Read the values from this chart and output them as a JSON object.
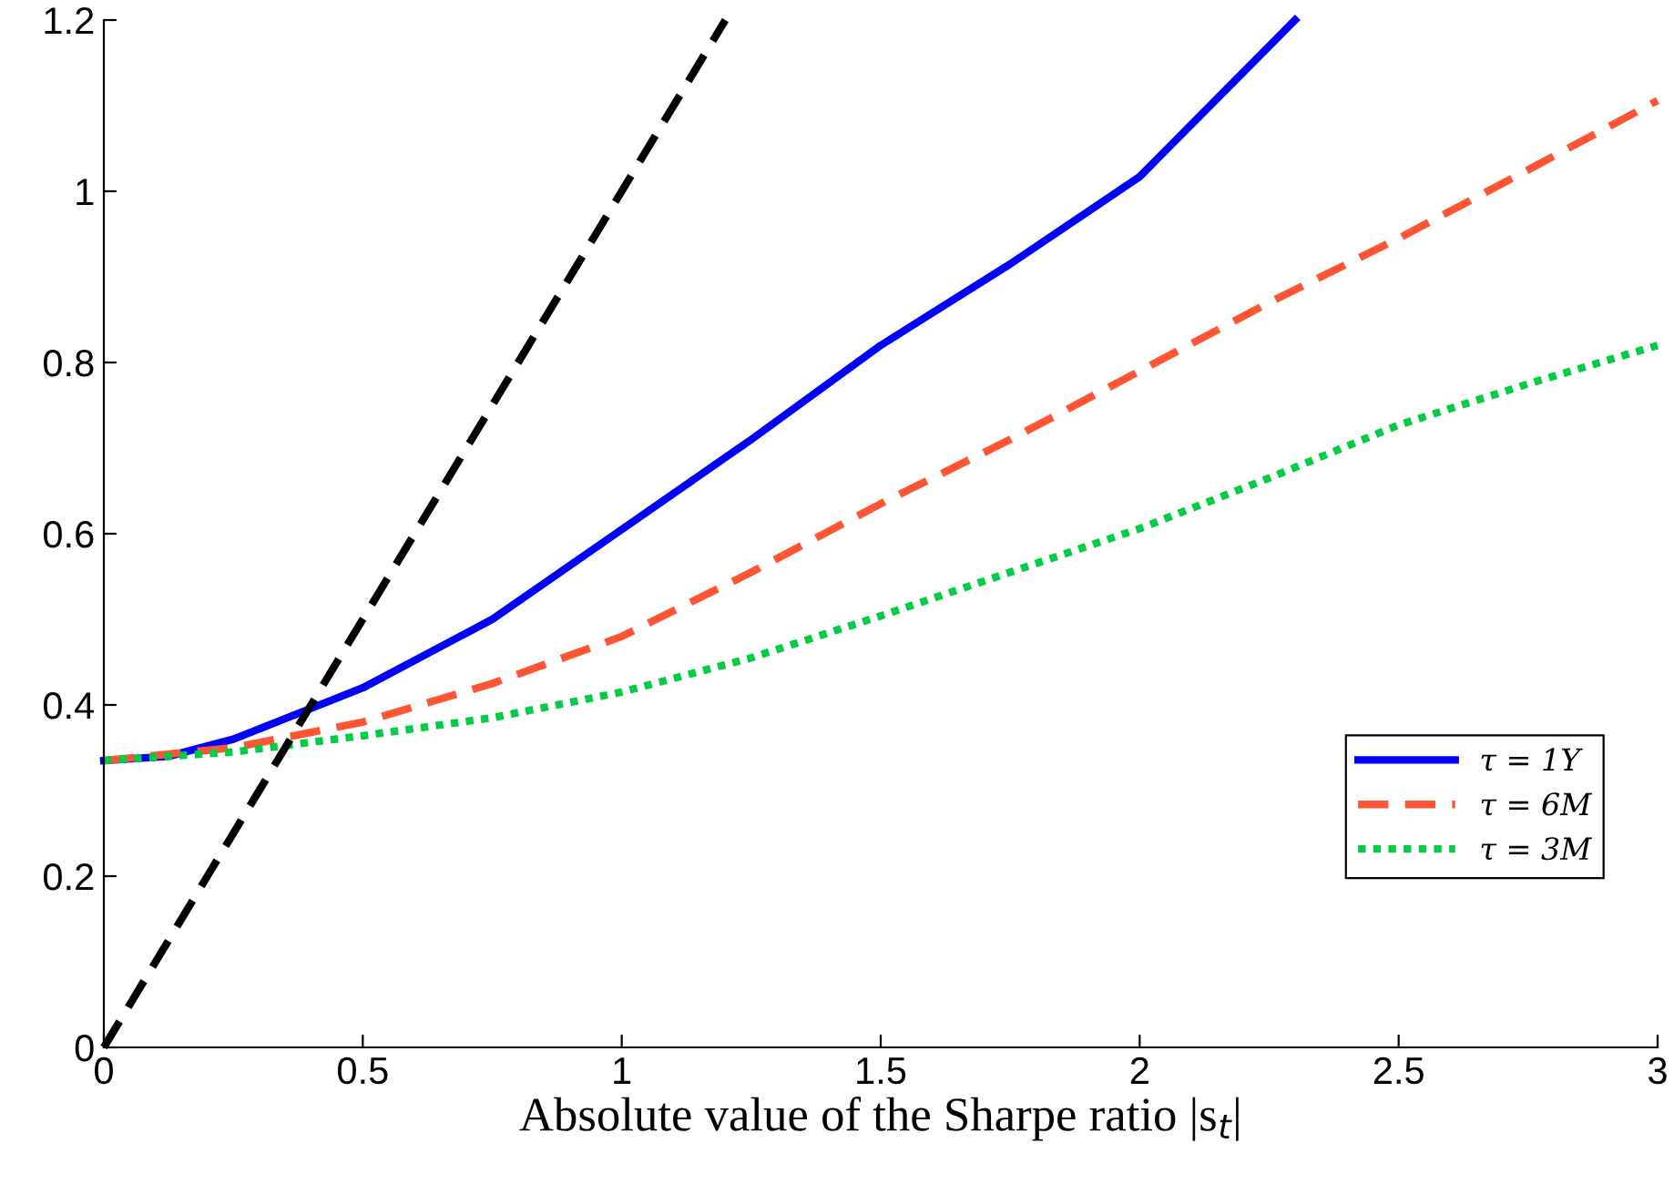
{
  "chart_data": {
    "type": "line",
    "xlabel": "Absolute value of the Sharpe ratio |s$_{t}$|",
    "xlim": [
      0,
      3
    ],
    "ylim": [
      0,
      1.2
    ],
    "xticks": [
      0,
      0.5,
      1,
      1.5,
      2,
      2.5,
      3
    ],
    "yticks": [
      0,
      0.2,
      0.4,
      0.6,
      0.8,
      1,
      1.2
    ],
    "grid": false,
    "legend": "lower right",
    "series": [
      {
        "name": "τ = 1Y",
        "color": "#0000ff",
        "line_style": "solid",
        "x": [
          0,
          0.125,
          0.25,
          0.5,
          0.75,
          1,
          1.25,
          1.5,
          1.75,
          2,
          2.3
        ],
        "values": [
          0.335,
          0.34,
          0.36,
          0.42,
          0.5,
          0.605,
          0.71,
          0.82,
          0.915,
          1.017,
          1.2
        ]
      },
      {
        "name": "τ = 6M",
        "color": "#ff5533",
        "line_style": "dashed",
        "x": [
          0,
          0.25,
          0.5,
          0.75,
          1,
          1.25,
          1.5,
          1.75,
          2,
          2.25,
          2.5,
          2.75,
          3
        ],
        "values": [
          0.335,
          0.35,
          0.38,
          0.425,
          0.48,
          0.555,
          0.635,
          0.71,
          0.79,
          0.87,
          0.945,
          1.025,
          1.106
        ]
      },
      {
        "name": "τ = 3M",
        "color": "#00cc44",
        "line_style": "dotted",
        "x": [
          0,
          0.25,
          0.5,
          0.75,
          1,
          1.25,
          1.5,
          1.75,
          2,
          2.25,
          2.5,
          2.75,
          3
        ],
        "values": [
          0.335,
          0.345,
          0.364,
          0.385,
          0.415,
          0.455,
          0.504,
          0.555,
          0.606,
          0.665,
          0.727,
          0.775,
          0.82
        ]
      },
      {
        "color": "#000000",
        "line_style": "dashed",
        "x": [
          0,
          1.2
        ],
        "values": [
          0,
          1.2
        ]
      }
    ]
  }
}
